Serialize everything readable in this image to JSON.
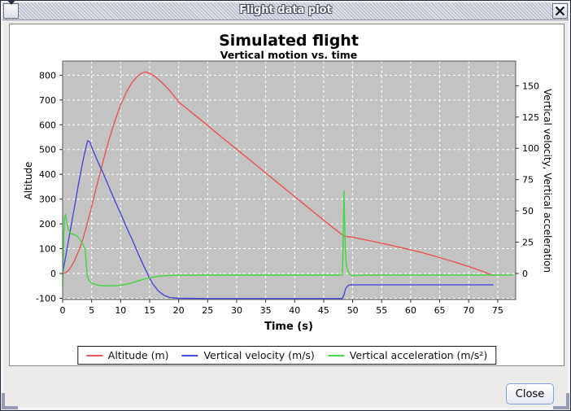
{
  "window": {
    "title": "Flight data plot"
  },
  "button": {
    "close_label": "Close"
  },
  "chart_data": {
    "type": "line",
    "title": "Simulated flight",
    "subtitle": "Vertical motion vs. time",
    "xlabel": "Time (s)",
    "ylabel_left": "Altitude",
    "ylabel_right": "Vertical velocity, Vertical acceleration",
    "grid": true,
    "legend_position": "bottom",
    "plot_bg": "#c3c3c3",
    "grid_color": "#ffffff",
    "axis_color": "#5a5a5a",
    "x_range": [
      0,
      78.1
    ],
    "y_left_range": [
      -105,
      857
    ],
    "right_to_left_factor": 5.05,
    "x_ticks": [
      0,
      5,
      10,
      15,
      20,
      25,
      30,
      35,
      40,
      45,
      50,
      55,
      60,
      65,
      70,
      75
    ],
    "y_left_ticks": [
      -100,
      0,
      100,
      200,
      300,
      400,
      500,
      600,
      700,
      800
    ],
    "y_right_ticks": [
      0,
      25,
      50,
      75,
      100,
      125,
      150
    ],
    "series": [
      {
        "name": "Altitude (m)",
        "axis": "left",
        "color": "#ee5555",
        "points": [
          [
            0,
            0
          ],
          [
            0.5,
            3
          ],
          [
            1,
            12
          ],
          [
            1.5,
            28
          ],
          [
            2,
            50
          ],
          [
            2.5,
            76
          ],
          [
            3,
            105
          ],
          [
            3.5,
            140
          ],
          [
            4,
            180
          ],
          [
            4.5,
            225
          ],
          [
            5,
            270
          ],
          [
            5.5,
            318
          ],
          [
            6,
            365
          ],
          [
            7,
            455
          ],
          [
            8,
            540
          ],
          [
            9,
            615
          ],
          [
            10,
            680
          ],
          [
            11,
            733
          ],
          [
            12,
            772
          ],
          [
            13,
            798
          ],
          [
            13.7,
            809
          ],
          [
            14.3,
            813
          ],
          [
            15,
            808
          ],
          [
            16,
            793
          ],
          [
            17,
            773
          ],
          [
            18,
            750
          ],
          [
            19,
            722
          ],
          [
            20,
            692
          ],
          [
            22,
            654
          ],
          [
            25,
            597
          ],
          [
            28,
            539
          ],
          [
            31,
            482
          ],
          [
            34,
            425
          ],
          [
            37,
            367
          ],
          [
            40,
            310
          ],
          [
            43,
            253
          ],
          [
            46,
            196
          ],
          [
            48,
            160
          ],
          [
            48.6,
            150
          ],
          [
            50,
            146
          ],
          [
            53,
            132
          ],
          [
            56,
            117
          ],
          [
            59,
            101
          ],
          [
            62,
            84
          ],
          [
            65,
            64
          ],
          [
            68,
            43
          ],
          [
            71,
            20
          ],
          [
            73,
            3
          ],
          [
            74.2,
            -8
          ]
        ]
      },
      {
        "name": "Vertical velocity (m/s)",
        "axis": "right",
        "color": "#4848db",
        "points": [
          [
            0,
            0
          ],
          [
            0.5,
            13
          ],
          [
            1,
            26
          ],
          [
            1.5,
            39
          ],
          [
            2,
            52
          ],
          [
            2.5,
            65
          ],
          [
            3,
            78
          ],
          [
            3.5,
            90
          ],
          [
            4,
            100
          ],
          [
            4.3,
            106
          ],
          [
            4.7,
            105
          ],
          [
            5,
            101
          ],
          [
            6,
            90
          ],
          [
            7,
            80
          ],
          [
            8,
            69
          ],
          [
            9,
            58
          ],
          [
            10,
            48
          ],
          [
            11,
            37
          ],
          [
            12,
            27
          ],
          [
            13,
            16
          ],
          [
            14,
            6
          ],
          [
            14.8,
            -2
          ],
          [
            15.5,
            -8
          ],
          [
            16.5,
            -14
          ],
          [
            17.5,
            -17.5
          ],
          [
            18.5,
            -19.2
          ],
          [
            20,
            -19.8
          ],
          [
            25,
            -20
          ],
          [
            48.2,
            -20
          ],
          [
            48.5,
            -17
          ],
          [
            48.8,
            -12
          ],
          [
            49.2,
            -9.6
          ],
          [
            49.6,
            -9.1
          ],
          [
            50.2,
            -9
          ],
          [
            74.2,
            -9
          ]
        ]
      },
      {
        "name": "Vertical acceleration (m/s²)",
        "axis": "right",
        "color": "#44d644",
        "points": [
          [
            0,
            -9.8
          ],
          [
            0.08,
            8
          ],
          [
            0.2,
            32
          ],
          [
            0.35,
            45
          ],
          [
            0.5,
            47
          ],
          [
            0.7,
            41
          ],
          [
            1,
            35
          ],
          [
            1.4,
            32
          ],
          [
            2,
            31
          ],
          [
            2.5,
            30
          ],
          [
            3,
            27
          ],
          [
            3.5,
            23
          ],
          [
            3.9,
            19
          ],
          [
            4.1,
            6
          ],
          [
            4.3,
            -3
          ],
          [
            4.6,
            -6
          ],
          [
            5,
            -7.5
          ],
          [
            5.5,
            -8.6
          ],
          [
            6,
            -9.2
          ],
          [
            6.5,
            -9.6
          ],
          [
            7,
            -9.8
          ],
          [
            8,
            -9.9
          ],
          [
            9,
            -9.8
          ],
          [
            10,
            -9.4
          ],
          [
            11,
            -8.6
          ],
          [
            12,
            -7.4
          ],
          [
            13,
            -6
          ],
          [
            14,
            -4.6
          ],
          [
            15,
            -3.4
          ],
          [
            16,
            -2.6
          ],
          [
            17,
            -2
          ],
          [
            18,
            -1.7
          ],
          [
            20,
            -1.4
          ],
          [
            25,
            -1.3
          ],
          [
            48.2,
            -1.3
          ],
          [
            48.32,
            15
          ],
          [
            48.5,
            66
          ],
          [
            48.62,
            38
          ],
          [
            48.75,
            18
          ],
          [
            48.9,
            8
          ],
          [
            49.1,
            3
          ],
          [
            49.4,
            0
          ],
          [
            49.9,
            -1.9
          ],
          [
            50.6,
            -1.6
          ],
          [
            52,
            -1.3
          ],
          [
            55,
            -1.2
          ],
          [
            77.6,
            -1.2
          ]
        ]
      }
    ]
  }
}
